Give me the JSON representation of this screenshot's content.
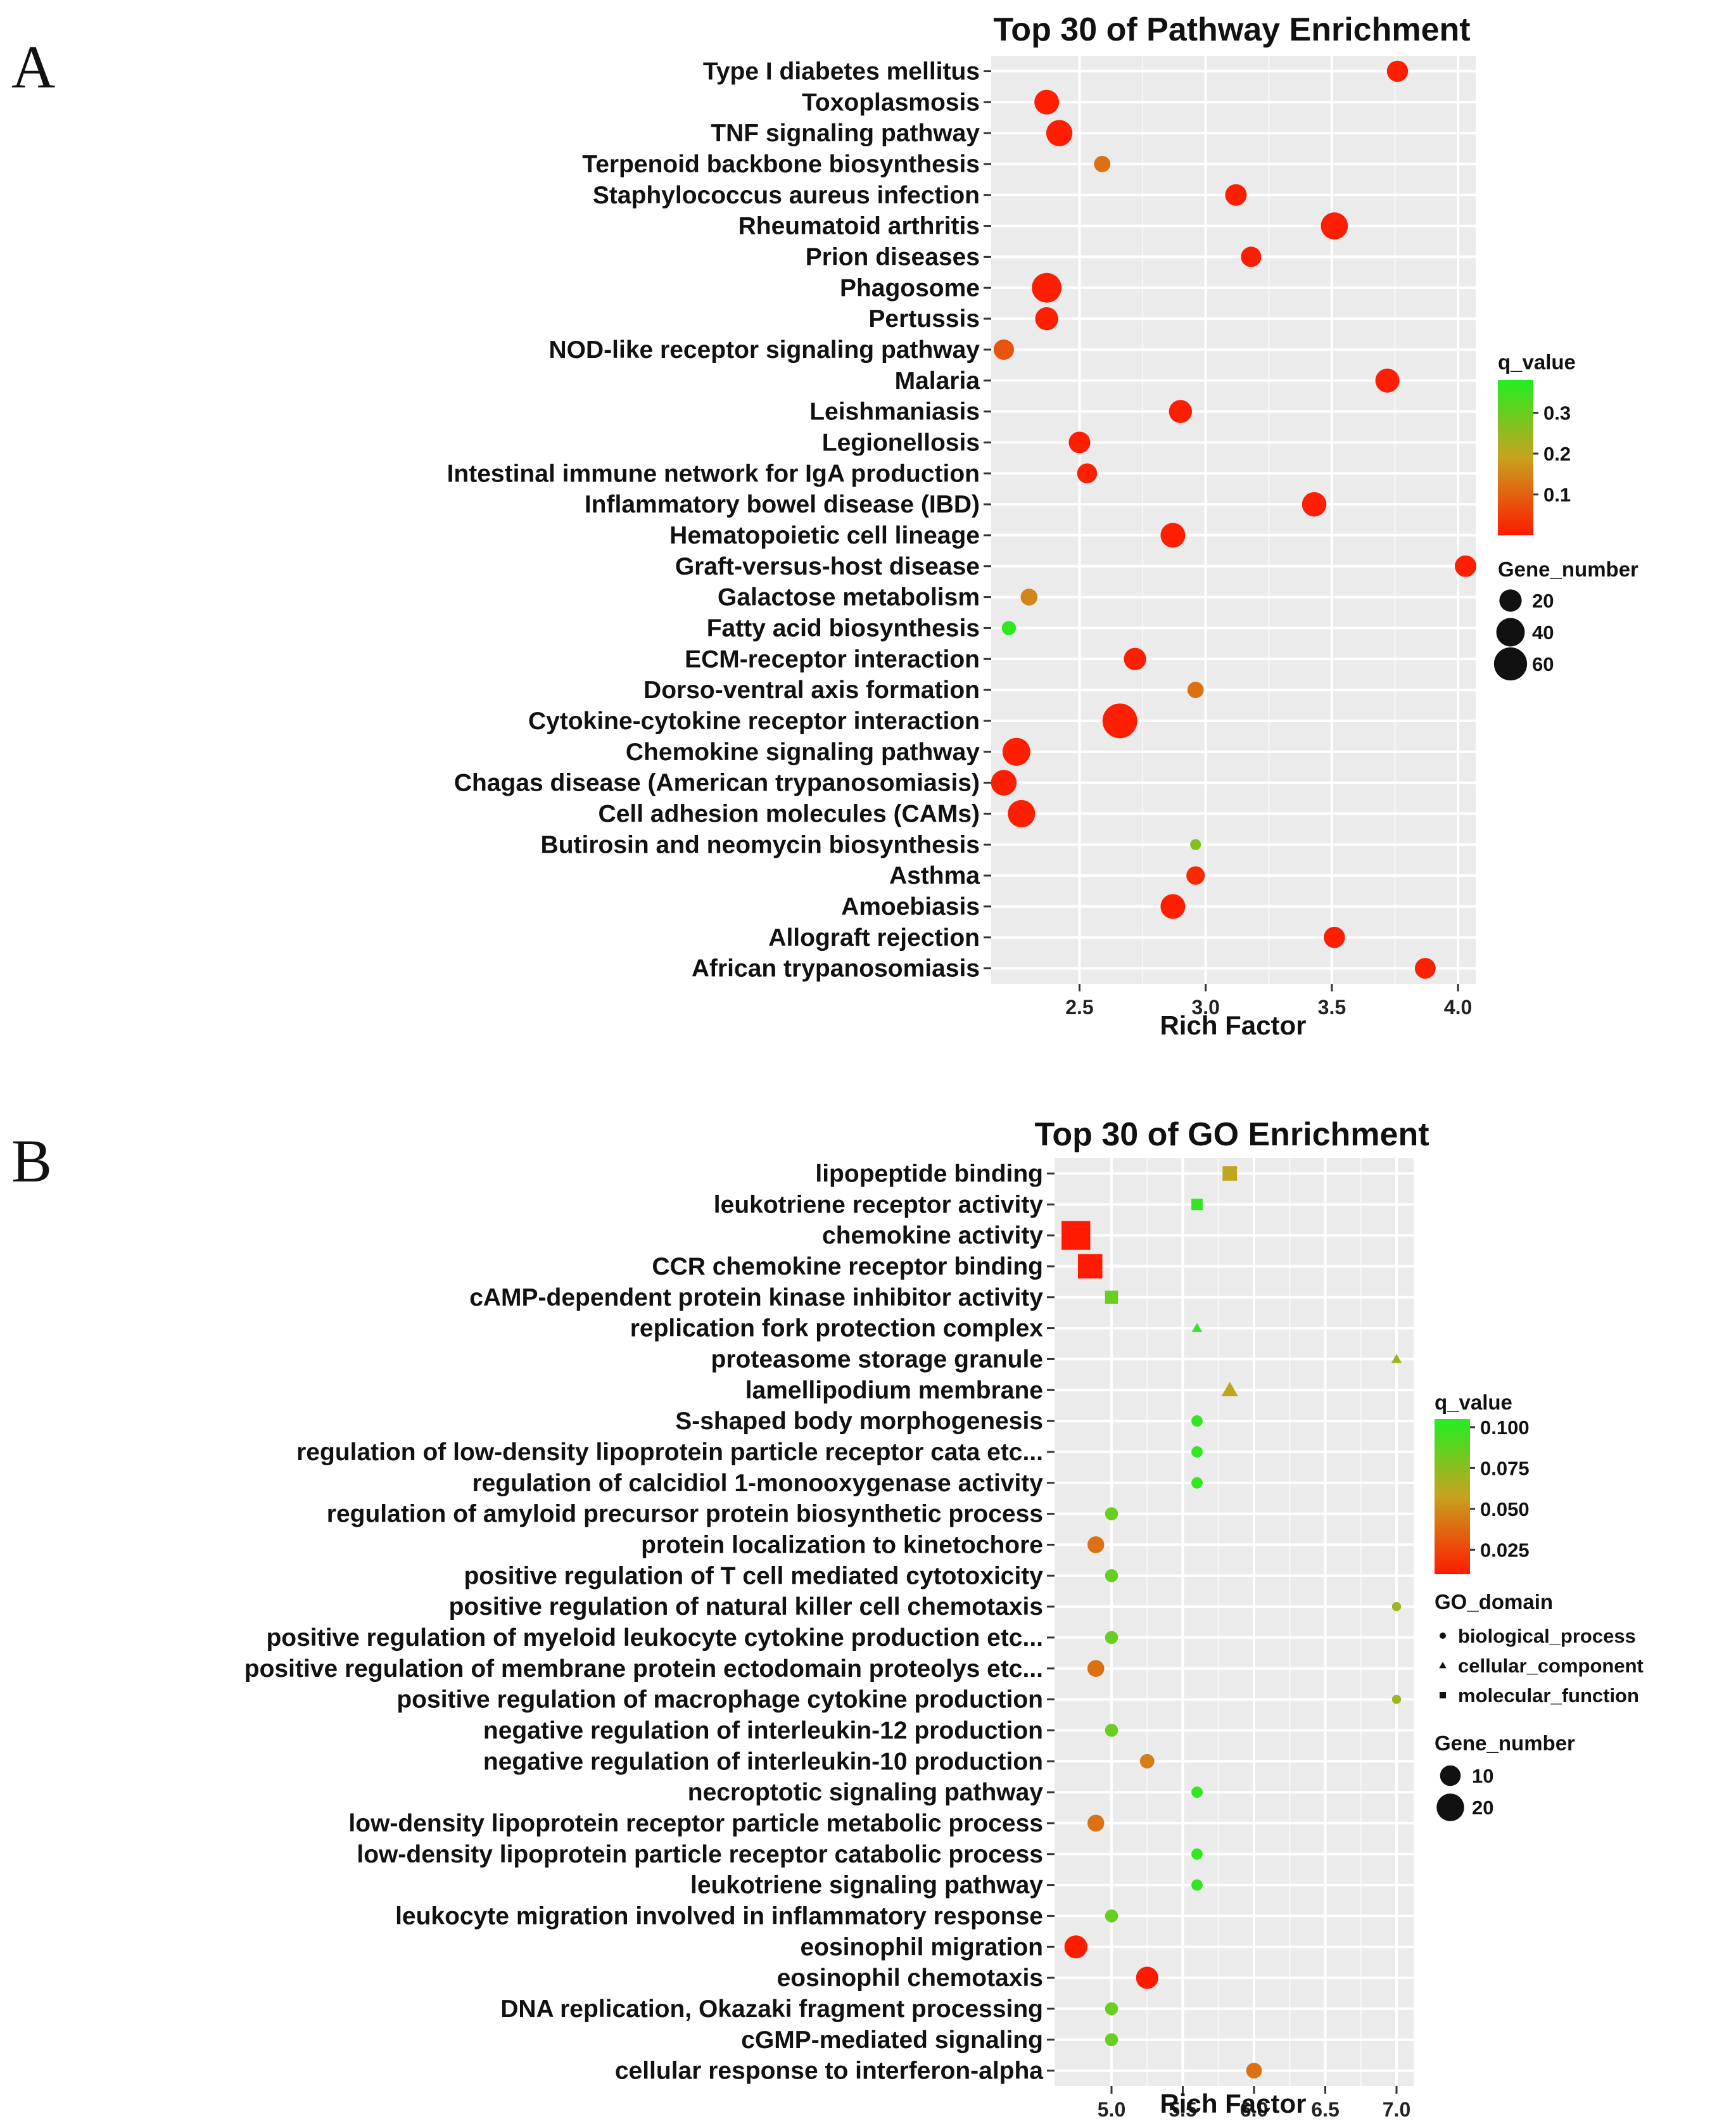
{
  "panels": [
    {
      "label": "A"
    },
    {
      "label": "B"
    }
  ],
  "colors": {
    "panel_bg": "#ebebeb",
    "grid": "#ffffff",
    "q_low": "#ff1a00",
    "q_mid": "#c8a21e",
    "q_high": "#22ee22"
  },
  "chart_data": [
    {
      "type": "scatter",
      "title": "Top 30 of Pathway Enrichment",
      "xlabel": "Rich Factor",
      "ylabel": "",
      "xlim": [
        2.15,
        4.07
      ],
      "xticks": [
        2.5,
        3.0,
        3.5,
        4.0
      ],
      "xtick_labels": [
        "2.5",
        "3.0",
        "3.5",
        "4.0"
      ],
      "grid": true,
      "legend_position": "right",
      "color_var": "q_value",
      "color_range": [
        0.0,
        0.38
      ],
      "color_ticks": [
        0.3,
        0.2,
        0.1
      ],
      "color_tick_labels": [
        "0.3",
        "0.2",
        "0.1"
      ],
      "size_var": "Gene_number",
      "size_ticks": [
        20,
        40,
        60
      ],
      "size_tick_labels": [
        "20",
        "40",
        "60"
      ],
      "categories": [
        "Type I diabetes mellitus",
        "Toxoplasmosis",
        "TNF signaling pathway",
        "Terpenoid backbone biosynthesis",
        "Staphylococcus aureus infection",
        "Rheumatoid arthritis",
        "Prion diseases",
        "Phagosome",
        "Pertussis",
        "NOD-like receptor signaling pathway",
        "Malaria",
        "Leishmaniasis",
        "Legionellosis",
        "Intestinal immune network for IgA production",
        "Inflammatory bowel disease (IBD)",
        "Hematopoietic cell lineage",
        "Graft-versus-host disease",
        "Galactose metabolism",
        "Fatty acid biosynthesis",
        "ECM-receptor interaction",
        "Dorso-ventral axis formation",
        "Cytokine-cytokine receptor interaction",
        "Chemokine signaling pathway",
        "Chagas disease (American trypanosomiasis)",
        "Cell adhesion molecules (CAMs)",
        "Butirosin and neomycin biosynthesis",
        "Asthma",
        "Amoebiasis",
        "Allograft rejection",
        "African trypanosomiasis"
      ],
      "points": [
        {
          "x": 3.76,
          "q": 0.005,
          "genes": 17,
          "shape": "circle"
        },
        {
          "x": 2.37,
          "q": 0.005,
          "genes": 27,
          "shape": "circle"
        },
        {
          "x": 2.42,
          "q": 0.005,
          "genes": 32,
          "shape": "circle"
        },
        {
          "x": 2.59,
          "q": 0.12,
          "genes": 7,
          "shape": "circle"
        },
        {
          "x": 3.12,
          "q": 0.005,
          "genes": 18,
          "shape": "circle"
        },
        {
          "x": 3.51,
          "q": 0.005,
          "genes": 35,
          "shape": "circle"
        },
        {
          "x": 3.18,
          "q": 0.005,
          "genes": 15,
          "shape": "circle"
        },
        {
          "x": 2.37,
          "q": 0.005,
          "genes": 45,
          "shape": "circle"
        },
        {
          "x": 2.37,
          "q": 0.005,
          "genes": 22,
          "shape": "circle"
        },
        {
          "x": 2.2,
          "q": 0.08,
          "genes": 15,
          "shape": "circle"
        },
        {
          "x": 3.72,
          "q": 0.005,
          "genes": 25,
          "shape": "circle"
        },
        {
          "x": 2.9,
          "q": 0.005,
          "genes": 22,
          "shape": "circle"
        },
        {
          "x": 2.5,
          "q": 0.005,
          "genes": 18,
          "shape": "circle"
        },
        {
          "x": 2.53,
          "q": 0.005,
          "genes": 14,
          "shape": "circle"
        },
        {
          "x": 3.43,
          "q": 0.005,
          "genes": 26,
          "shape": "circle"
        },
        {
          "x": 2.87,
          "q": 0.005,
          "genes": 27,
          "shape": "circle"
        },
        {
          "x": 4.03,
          "q": 0.005,
          "genes": 18,
          "shape": "circle"
        },
        {
          "x": 2.3,
          "q": 0.15,
          "genes": 8,
          "shape": "circle"
        },
        {
          "x": 2.22,
          "q": 0.36,
          "genes": 4,
          "shape": "circle"
        },
        {
          "x": 2.72,
          "q": 0.005,
          "genes": 20,
          "shape": "circle"
        },
        {
          "x": 2.96,
          "q": 0.12,
          "genes": 7,
          "shape": "circle"
        },
        {
          "x": 2.66,
          "q": 0.005,
          "genes": 68,
          "shape": "circle"
        },
        {
          "x": 2.25,
          "q": 0.005,
          "genes": 38,
          "shape": "circle"
        },
        {
          "x": 2.2,
          "q": 0.005,
          "genes": 30,
          "shape": "circle"
        },
        {
          "x": 2.27,
          "q": 0.005,
          "genes": 36,
          "shape": "circle"
        },
        {
          "x": 2.96,
          "q": 0.27,
          "genes": 1,
          "shape": "circle"
        },
        {
          "x": 2.96,
          "q": 0.02,
          "genes": 11,
          "shape": "circle"
        },
        {
          "x": 2.87,
          "q": 0.005,
          "genes": 27,
          "shape": "circle"
        },
        {
          "x": 3.51,
          "q": 0.005,
          "genes": 17,
          "shape": "circle"
        },
        {
          "x": 3.87,
          "q": 0.005,
          "genes": 16,
          "shape": "circle"
        }
      ]
    },
    {
      "type": "scatter",
      "title": "Top 30 of GO Enrichment",
      "xlabel": "Rich Factor",
      "ylabel": "",
      "xlim": [
        4.6,
        7.12
      ],
      "xticks": [
        5.0,
        5.5,
        6.0,
        6.5,
        7.0
      ],
      "xtick_labels": [
        "5.0",
        "5.5",
        "6.0",
        "6.5",
        "7.0"
      ],
      "grid": true,
      "legend_position": "right",
      "color_var": "q_value",
      "color_range": [
        0.01,
        0.105
      ],
      "color_ticks": [
        0.1,
        0.075,
        0.05,
        0.025
      ],
      "color_tick_labels": [
        "0.100",
        "0.075",
        "0.050",
        "0.025"
      ],
      "shape_var": "GO_domain",
      "shape_legend": [
        {
          "label": "biological_process",
          "shape": "circle"
        },
        {
          "label": "cellular_component",
          "shape": "triangle"
        },
        {
          "label": "molecular_function",
          "shape": "square"
        }
      ],
      "size_var": "Gene_number",
      "size_ticks": [
        10,
        20
      ],
      "size_tick_labels": [
        "10",
        "20"
      ],
      "categories": [
        "lipopeptide binding",
        "leukotriene receptor activity",
        "chemokine activity",
        "CCR chemokine receptor binding",
        "cAMP-dependent protein kinase inhibitor activity",
        "replication fork protection complex",
        "proteasome storage granule",
        "lamellipodium membrane",
        "S-shaped body morphogenesis",
        "regulation of low-density lipoprotein particle receptor cata etc...",
        "regulation of calcidiol 1-monooxygenase activity",
        "regulation of amyloid precursor protein biosynthetic process",
        "protein localization to kinetochore",
        "positive regulation of T cell mediated cytotoxicity",
        "positive regulation of natural killer cell chemotaxis",
        "positive regulation of myeloid leukocyte cytokine production etc...",
        "positive regulation of membrane protein ectodomain proteolys etc...",
        "positive regulation of macrophage cytokine production",
        "negative regulation of interleukin-12 production",
        "negative regulation of interleukin-10 production",
        "necroptotic signaling pathway",
        "low-density lipoprotein receptor particle metabolic process",
        "low-density lipoprotein particle receptor catabolic process",
        "leukotriene signaling pathway",
        "leukocyte migration involved in inflammatory response",
        "eosinophil migration",
        "eosinophil chemotaxis",
        "DNA replication, Okazaki fragment processing",
        "cGMP-mediated signaling",
        "cellular response to interferon-alpha"
      ],
      "points": [
        {
          "x": 5.83,
          "q": 0.06,
          "genes": 4,
          "shape": "square"
        },
        {
          "x": 5.6,
          "q": 0.1,
          "genes": 2,
          "shape": "square"
        },
        {
          "x": 4.75,
          "q": 0.005,
          "genes": 22,
          "shape": "square"
        },
        {
          "x": 4.85,
          "q": 0.005,
          "genes": 15,
          "shape": "square"
        },
        {
          "x": 5.0,
          "q": 0.085,
          "genes": 3,
          "shape": "square"
        },
        {
          "x": 5.6,
          "q": 0.1,
          "genes": 1,
          "shape": "triangle"
        },
        {
          "x": 7.0,
          "q": 0.07,
          "genes": 1,
          "shape": "triangle"
        },
        {
          "x": 5.83,
          "q": 0.06,
          "genes": 4,
          "shape": "triangle"
        },
        {
          "x": 5.6,
          "q": 0.1,
          "genes": 2,
          "shape": "circle"
        },
        {
          "x": 5.6,
          "q": 0.1,
          "genes": 2,
          "shape": "circle"
        },
        {
          "x": 5.6,
          "q": 0.1,
          "genes": 2,
          "shape": "circle"
        },
        {
          "x": 5.0,
          "q": 0.085,
          "genes": 3,
          "shape": "circle"
        },
        {
          "x": 4.89,
          "q": 0.04,
          "genes": 6,
          "shape": "circle"
        },
        {
          "x": 5.0,
          "q": 0.085,
          "genes": 3,
          "shape": "circle"
        },
        {
          "x": 7.0,
          "q": 0.07,
          "genes": 1,
          "shape": "circle"
        },
        {
          "x": 5.0,
          "q": 0.085,
          "genes": 3,
          "shape": "circle"
        },
        {
          "x": 4.89,
          "q": 0.04,
          "genes": 6,
          "shape": "circle"
        },
        {
          "x": 7.0,
          "q": 0.07,
          "genes": 1,
          "shape": "circle"
        },
        {
          "x": 5.0,
          "q": 0.085,
          "genes": 3,
          "shape": "circle"
        },
        {
          "x": 5.25,
          "q": 0.045,
          "genes": 4,
          "shape": "circle"
        },
        {
          "x": 5.6,
          "q": 0.1,
          "genes": 2,
          "shape": "circle"
        },
        {
          "x": 4.89,
          "q": 0.04,
          "genes": 6,
          "shape": "circle"
        },
        {
          "x": 5.6,
          "q": 0.1,
          "genes": 2,
          "shape": "circle"
        },
        {
          "x": 5.6,
          "q": 0.1,
          "genes": 2,
          "shape": "circle"
        },
        {
          "x": 5.0,
          "q": 0.085,
          "genes": 3,
          "shape": "circle"
        },
        {
          "x": 4.75,
          "q": 0.005,
          "genes": 13,
          "shape": "circle"
        },
        {
          "x": 5.25,
          "q": 0.005,
          "genes": 12,
          "shape": "circle"
        },
        {
          "x": 5.0,
          "q": 0.085,
          "genes": 3,
          "shape": "circle"
        },
        {
          "x": 5.0,
          "q": 0.085,
          "genes": 3,
          "shape": "circle"
        },
        {
          "x": 6.0,
          "q": 0.04,
          "genes": 5,
          "shape": "circle"
        }
      ]
    }
  ]
}
